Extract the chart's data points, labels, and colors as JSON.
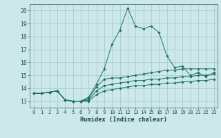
{
  "xlabel": "Humidex (Indice chaleur)",
  "background_color": "#cce8e8",
  "grid_color": "#aacccc",
  "line_color": "#1a6e6a",
  "xlim": [
    -0.5,
    23.5
  ],
  "ylim": [
    12.5,
    20.5
  ],
  "xticks": [
    0,
    1,
    2,
    3,
    4,
    5,
    6,
    7,
    8,
    9,
    10,
    11,
    12,
    13,
    14,
    15,
    16,
    17,
    18,
    19,
    20,
    21,
    22,
    23
  ],
  "yticks": [
    13,
    14,
    15,
    16,
    17,
    18,
    19,
    20
  ],
  "series": [
    [
      13.6,
      13.6,
      13.7,
      13.8,
      13.1,
      13.0,
      13.0,
      13.3,
      14.3,
      15.5,
      17.4,
      18.5,
      20.2,
      18.8,
      18.6,
      18.8,
      18.3,
      16.5,
      15.6,
      15.7,
      15.0,
      15.2,
      14.9,
      15.2
    ],
    [
      13.6,
      13.6,
      13.7,
      13.8,
      13.1,
      13.0,
      13.0,
      13.2,
      14.1,
      14.7,
      14.8,
      14.8,
      14.9,
      15.0,
      15.1,
      15.2,
      15.3,
      15.4,
      15.4,
      15.5,
      15.5,
      15.5,
      15.5,
      15.5
    ],
    [
      13.6,
      13.6,
      13.7,
      13.8,
      13.1,
      13.0,
      13.0,
      13.1,
      13.8,
      14.2,
      14.3,
      14.4,
      14.5,
      14.6,
      14.6,
      14.7,
      14.7,
      14.8,
      14.8,
      14.9,
      14.9,
      15.0,
      15.0,
      15.1
    ],
    [
      13.6,
      13.6,
      13.7,
      13.8,
      13.1,
      13.0,
      13.0,
      13.0,
      13.5,
      13.8,
      13.9,
      14.0,
      14.1,
      14.2,
      14.2,
      14.3,
      14.3,
      14.4,
      14.4,
      14.5,
      14.5,
      14.6,
      14.6,
      14.7
    ]
  ]
}
